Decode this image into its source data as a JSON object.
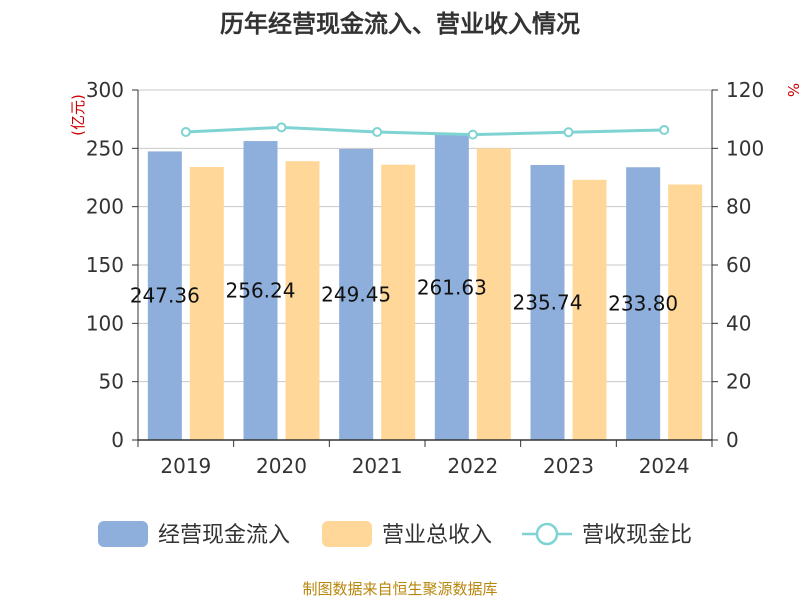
{
  "chart_data": {
    "type": "bar",
    "title": "历年经营现金流入、营业收入情况",
    "categories": [
      "2019",
      "2020",
      "2021",
      "2022",
      "2023",
      "2024"
    ],
    "series": [
      {
        "name": "经营现金流入",
        "type": "bar",
        "axis": "left",
        "color": "#8eaedb",
        "values": [
          247.36,
          256.24,
          249.45,
          261.63,
          235.74,
          233.8
        ]
      },
      {
        "name": "营业总收入",
        "type": "bar",
        "axis": "left",
        "color": "#ffd899",
        "values": [
          234,
          239,
          236,
          250,
          223,
          219
        ]
      },
      {
        "name": "营收现金比",
        "type": "line",
        "axis": "right",
        "color": "#7fd3d3",
        "values": [
          105.6,
          107.2,
          105.6,
          104.7,
          105.5,
          106.3
        ]
      }
    ],
    "data_labels": [
      "247.36",
      "256.24",
      "249.45",
      "261.63",
      "235.74",
      "233.80"
    ],
    "y_left": {
      "unit": "(亿元)",
      "ylim": [
        0,
        300
      ],
      "ticks": [
        "0",
        "50",
        "100",
        "150",
        "200",
        "250",
        "300"
      ]
    },
    "y_right": {
      "unit": "%",
      "ylim": [
        0,
        120
      ],
      "ticks": [
        "0",
        "20",
        "40",
        "60",
        "80",
        "100",
        "120"
      ]
    },
    "grid": true,
    "legend_position": "bottom"
  },
  "source": "制图数据来自恒生聚源数据库"
}
